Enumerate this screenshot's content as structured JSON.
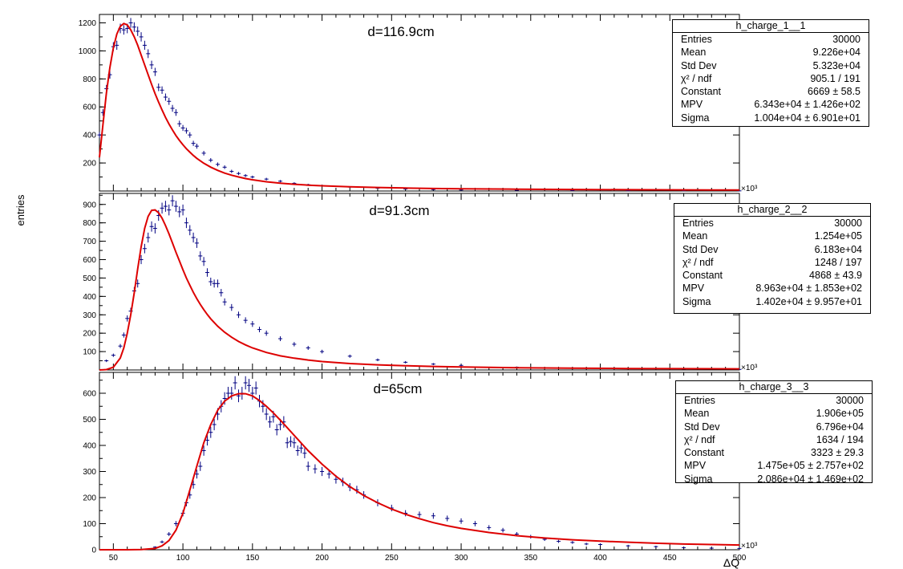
{
  "ylabel": "entries",
  "xlabel": "ΔQ",
  "x_exponent": "×10³",
  "colors": {
    "data": "#000080",
    "fit": "#dd0000",
    "frame": "#000000"
  },
  "chart_data": [
    {
      "type": "scatter",
      "name": "h_charge_1__1",
      "annotation": "d=116.9cm",
      "xlim": [
        40,
        500
      ],
      "ylim": [
        0,
        1260
      ],
      "yticks": [
        200,
        400,
        600,
        800,
        1000,
        1200
      ],
      "ytick_labels": [
        "200",
        "400",
        "600",
        "800",
        "1000",
        "1200"
      ],
      "grid": false,
      "stats": {
        "title": "h_charge_1__1",
        "rows": [
          [
            "Entries",
            "30000"
          ],
          [
            "Mean",
            "9.226e+04"
          ],
          [
            "Std Dev",
            "5.323e+04"
          ],
          [
            "χ² / ndf",
            "905.1 / 191"
          ],
          [
            "Constant",
            "6669 ± 58.5"
          ],
          [
            "MPV",
            "6.343e+04 ± 1.426e+02"
          ],
          [
            "Sigma",
            "1.004e+04 ± 6.901e+01"
          ]
        ]
      },
      "data_x": [
        40,
        42.5,
        45,
        47.5,
        50,
        52.5,
        55,
        57.5,
        60,
        62.5,
        65,
        67.5,
        70,
        72.5,
        75,
        77.5,
        80,
        82.5,
        85,
        87.5,
        90,
        92.5,
        95,
        97.5,
        100,
        102.5,
        105,
        107.5,
        110,
        115,
        120,
        125,
        130,
        135,
        140,
        145,
        150,
        160,
        170,
        180,
        190,
        200,
        220,
        240,
        260,
        280,
        300,
        340,
        380,
        420,
        460,
        500
      ],
      "data_y": [
        400,
        560,
        730,
        830,
        1030,
        1040,
        1160,
        1150,
        1160,
        1200,
        1170,
        1140,
        1100,
        1040,
        980,
        900,
        850,
        740,
        720,
        670,
        640,
        590,
        560,
        480,
        450,
        430,
        400,
        340,
        320,
        270,
        220,
        190,
        170,
        140,
        125,
        110,
        100,
        85,
        70,
        55,
        45,
        38,
        28,
        20,
        14,
        10,
        7,
        5,
        3,
        2,
        2,
        1
      ],
      "fit_x": [
        40,
        42.5,
        45,
        47.5,
        50,
        52.5,
        55,
        57.5,
        60,
        62.5,
        65,
        67.5,
        70,
        72.5,
        75,
        77.5,
        80,
        82.5,
        85,
        87.5,
        90,
        92.5,
        95,
        97.5,
        100,
        102.5,
        105,
        107.5,
        110,
        115,
        120,
        125,
        130,
        135,
        140,
        145,
        150,
        160,
        170,
        180,
        190,
        200,
        220,
        240,
        260,
        280,
        300,
        340,
        380,
        420,
        460,
        500
      ],
      "fit_y": [
        240,
        470,
        700,
        880,
        1020,
        1120,
        1175,
        1195,
        1185,
        1150,
        1100,
        1040,
        970,
        900,
        830,
        760,
        695,
        635,
        578,
        525,
        478,
        435,
        396,
        361,
        330,
        302,
        277,
        254,
        233,
        198,
        170,
        147,
        128,
        113,
        100,
        89,
        80,
        66,
        56,
        48,
        42,
        37,
        30,
        25,
        21,
        18,
        16,
        13,
        11,
        9,
        8,
        7
      ]
    },
    {
      "type": "scatter",
      "name": "h_charge_2__2",
      "annotation": "d=91.3cm",
      "xlim": [
        40,
        500
      ],
      "ylim": [
        0,
        960
      ],
      "yticks": [
        100,
        200,
        300,
        400,
        500,
        600,
        700,
        800,
        900
      ],
      "ytick_labels": [
        "100",
        "200",
        "300",
        "400",
        "500",
        "600",
        "700",
        "800",
        "900"
      ],
      "grid": false,
      "stats": {
        "title": "h_charge_2__2",
        "rows": [
          [
            "Entries",
            "30000"
          ],
          [
            "Mean",
            "1.254e+05"
          ],
          [
            "Std Dev",
            "6.183e+04"
          ],
          [
            "χ² / ndf",
            "1248 / 197"
          ],
          [
            "Constant",
            "4868 ± 43.9"
          ],
          [
            "MPV",
            "8.963e+04 ± 1.853e+02"
          ],
          [
            "Sigma",
            "1.402e+04 ± 9.957e+01"
          ]
        ]
      },
      "data_x": [
        45,
        50,
        55,
        57.5,
        60,
        62.5,
        65,
        67.5,
        70,
        72.5,
        75,
        77.5,
        80,
        82.5,
        85,
        87.5,
        90,
        92.5,
        95,
        97.5,
        100,
        102.5,
        105,
        107.5,
        110,
        112.5,
        115,
        117.5,
        120,
        122.5,
        125,
        127.5,
        130,
        135,
        140,
        145,
        150,
        155,
        160,
        170,
        180,
        190,
        200,
        220,
        240,
        260,
        280,
        300,
        340,
        380,
        420,
        460,
        500
      ],
      "data_y": [
        50,
        80,
        130,
        190,
        280,
        320,
        430,
        470,
        600,
        660,
        720,
        780,
        770,
        840,
        880,
        890,
        870,
        920,
        890,
        860,
        870,
        800,
        760,
        720,
        690,
        620,
        590,
        530,
        480,
        470,
        470,
        420,
        370,
        340,
        300,
        270,
        250,
        220,
        200,
        170,
        140,
        120,
        100,
        75,
        55,
        42,
        32,
        25,
        15,
        10,
        7,
        5,
        3
      ],
      "fit_x": [
        40,
        45,
        50,
        55,
        57.5,
        60,
        62.5,
        65,
        67.5,
        70,
        72.5,
        75,
        77.5,
        80,
        82.5,
        85,
        87.5,
        90,
        92.5,
        95,
        97.5,
        100,
        102.5,
        105,
        107.5,
        110,
        112.5,
        115,
        117.5,
        120,
        125,
        130,
        135,
        140,
        145,
        150,
        160,
        170,
        180,
        190,
        200,
        220,
        240,
        260,
        280,
        300,
        340,
        380,
        420,
        460,
        500
      ],
      "fit_y": [
        0,
        2,
        15,
        65,
        120,
        200,
        300,
        420,
        550,
        670,
        770,
        835,
        868,
        870,
        855,
        825,
        785,
        740,
        690,
        640,
        592,
        545,
        500,
        460,
        422,
        388,
        356,
        328,
        302,
        278,
        238,
        205,
        178,
        155,
        136,
        120,
        95,
        77,
        64,
        54,
        46,
        35,
        28,
        23,
        19,
        16,
        12,
        10,
        8,
        7,
        6
      ]
    },
    {
      "type": "scatter",
      "name": "h_charge_3__3",
      "annotation": "d=65cm",
      "xlim": [
        40,
        500
      ],
      "ylim": [
        0,
        680
      ],
      "yticks": [
        0,
        100,
        200,
        300,
        400,
        500,
        600
      ],
      "ytick_labels": [
        "0",
        "100",
        "200",
        "300",
        "400",
        "500",
        "600"
      ],
      "xticks": [
        50,
        100,
        150,
        200,
        250,
        300,
        350,
        400,
        450,
        500
      ],
      "xtick_labels": [
        "50",
        "100",
        "150",
        "200",
        "250",
        "300",
        "350",
        "400",
        "450",
        "500"
      ],
      "grid": false,
      "stats": {
        "title": "h_charge_3__3",
        "rows": [
          [
            "Entries",
            "30000"
          ],
          [
            "Mean",
            "1.906e+05"
          ],
          [
            "Std Dev",
            "6.796e+04"
          ],
          [
            "χ² / ndf",
            "1634 / 194"
          ],
          [
            "Constant",
            "3323 ± 29.3"
          ],
          [
            "MPV",
            "1.475e+05 ± 2.757e+02"
          ],
          [
            "Sigma",
            "2.086e+04 ± 1.469e+02"
          ]
        ]
      },
      "data_x": [
        80,
        85,
        90,
        95,
        100,
        102.5,
        105,
        107.5,
        110,
        112.5,
        115,
        117.5,
        120,
        122.5,
        125,
        127.5,
        130,
        132.5,
        135,
        137.5,
        140,
        142.5,
        145,
        147.5,
        150,
        152.5,
        155,
        157.5,
        160,
        162.5,
        165,
        167.5,
        170,
        172.5,
        175,
        177.5,
        180,
        182.5,
        185,
        187.5,
        190,
        195,
        200,
        205,
        210,
        215,
        220,
        225,
        230,
        240,
        250,
        260,
        270,
        280,
        290,
        300,
        310,
        320,
        330,
        340,
        350,
        360,
        370,
        380,
        390,
        400,
        420,
        440,
        460,
        480,
        500
      ],
      "data_y": [
        10,
        30,
        60,
        100,
        140,
        180,
        210,
        250,
        290,
        320,
        380,
        420,
        450,
        480,
        520,
        550,
        580,
        600,
        600,
        640,
        590,
        600,
        640,
        630,
        600,
        620,
        570,
        550,
        520,
        490,
        510,
        460,
        480,
        490,
        410,
        415,
        410,
        380,
        390,
        370,
        320,
        310,
        300,
        290,
        270,
        260,
        240,
        230,
        210,
        180,
        160,
        140,
        135,
        130,
        120,
        110,
        100,
        85,
        75,
        60,
        50,
        40,
        32,
        28,
        22,
        20,
        15,
        12,
        8,
        6,
        5
      ],
      "fit_x": [
        40,
        60,
        70,
        80,
        85,
        90,
        95,
        100,
        105,
        110,
        115,
        120,
        125,
        130,
        135,
        140,
        145,
        150,
        155,
        160,
        165,
        170,
        175,
        180,
        190,
        200,
        210,
        220,
        230,
        240,
        250,
        260,
        270,
        280,
        290,
        300,
        320,
        340,
        360,
        380,
        400,
        420,
        440,
        460,
        480,
        500
      ],
      "fit_y": [
        0,
        0,
        1,
        5,
        15,
        35,
        75,
        140,
        230,
        320,
        410,
        480,
        535,
        570,
        590,
        598,
        598,
        590,
        572,
        550,
        525,
        497,
        468,
        438,
        380,
        328,
        282,
        242,
        208,
        180,
        156,
        136,
        119,
        104,
        92,
        82,
        66,
        54,
        45,
        38,
        33,
        29,
        25,
        22,
        20,
        18
      ]
    }
  ]
}
